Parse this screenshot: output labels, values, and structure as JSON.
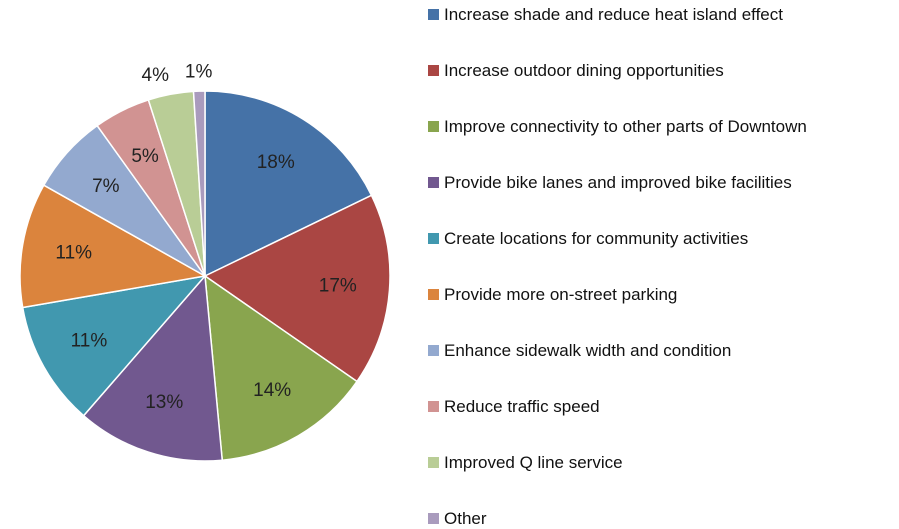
{
  "chart_data": {
    "type": "pie",
    "categories": [
      "Increase shade and reduce heat island effect",
      "Increase outdoor dining opportunities",
      "Improve connectivity to other parts of Downtown",
      "Provide bike lanes and improved bike facilities",
      "Create locations for community activities",
      "Provide more on-street parking",
      "Enhance sidewalk width and condition",
      "Reduce traffic speed",
      "Improved Q line service",
      "Other"
    ],
    "values": [
      18,
      17,
      14,
      13,
      11,
      11,
      7,
      5,
      4,
      1
    ],
    "value_labels": [
      "18%",
      "17%",
      "14%",
      "13%",
      "11%",
      "11%",
      "7%",
      "5%",
      "4%",
      "1%"
    ],
    "colors": [
      "#4572A7",
      "#AA4643",
      "#89A54E",
      "#71588F",
      "#4198AF",
      "#DB843D",
      "#93A9CF",
      "#D19392",
      "#B9CD96",
      "#A99BBD"
    ],
    "legend": "right"
  }
}
